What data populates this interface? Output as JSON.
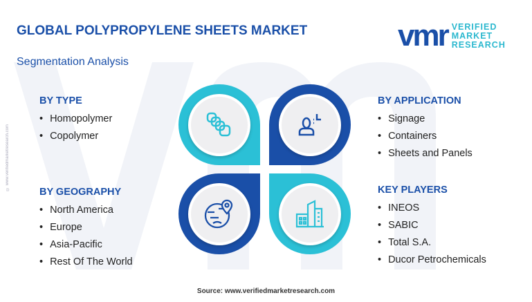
{
  "header": {
    "title": "GLOBAL POLYPROPYLENE SHEETS MARKET",
    "subtitle": "Segmentation Analysis"
  },
  "logo": {
    "mark": "vmr",
    "line1": "VERIFIED",
    "line2": "MARKET",
    "line3": "RESEARCH"
  },
  "side_watermark": "© www.verifiedmarketresearch.com",
  "sections": {
    "type": {
      "title": "BY TYPE",
      "items": [
        "Homopolymer",
        "Copolymer"
      ]
    },
    "geography": {
      "title": "BY GEOGRAPHY",
      "items": [
        "North America",
        "Europe",
        "Asia-Pacific",
        "Rest Of The World"
      ]
    },
    "application": {
      "title": "BY APPLICATION",
      "items": [
        "Signage",
        "Containers",
        "Sheets and Panels"
      ]
    },
    "players": {
      "title": "KEY PLAYERS",
      "items": [
        "INEOS",
        "SABIC",
        "Total S.A.",
        "Ducor Petrochemicals"
      ]
    }
  },
  "colors": {
    "navy": "#1a4fa8",
    "cyan": "#2bc0d6"
  },
  "icons": [
    "layers-icon",
    "person-idea-icon",
    "globe-pin-icon",
    "buildings-icon"
  ],
  "footer": {
    "source": "Source: www.verifiedmarketresearch.com"
  }
}
